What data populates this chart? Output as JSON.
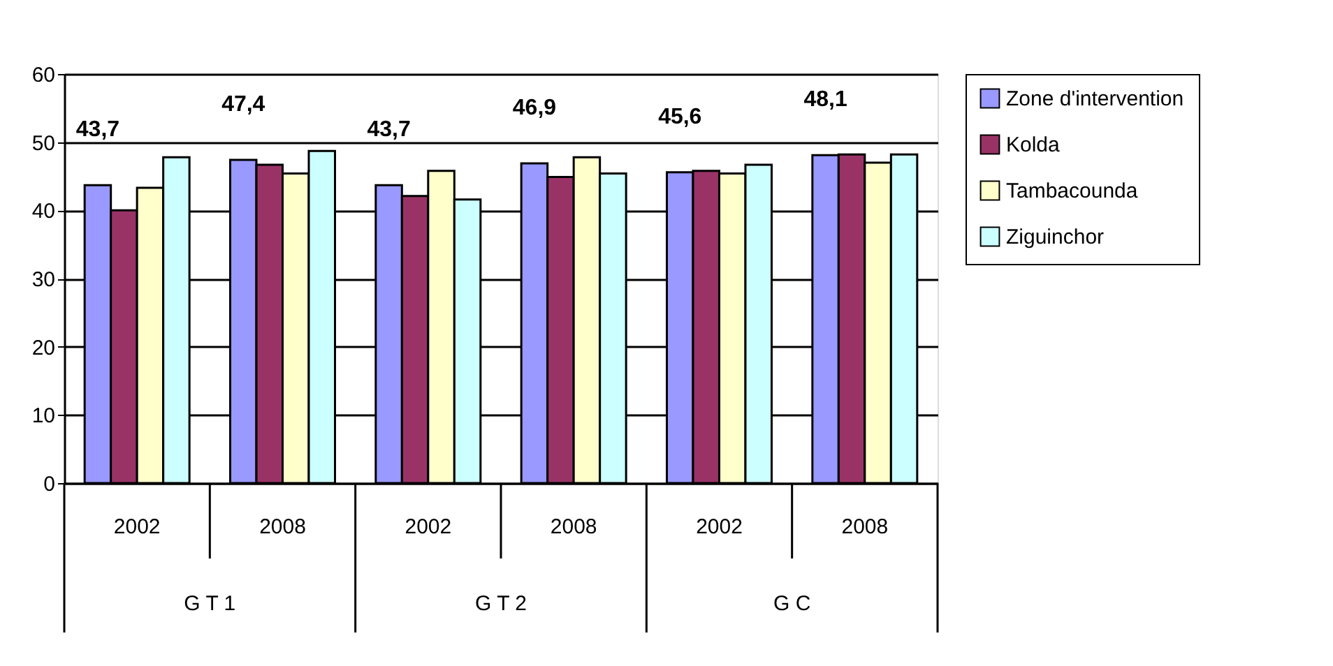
{
  "chart_data": {
    "type": "bar",
    "categories": [
      "2002",
      "2008",
      "2002",
      "2008",
      "2002",
      "2008"
    ],
    "annotations": [
      "G T 1",
      "G T 2",
      "G C"
    ],
    "series": [
      {
        "name": "Zone d'intervention",
        "color": "#9999ff",
        "values": [
          43.7,
          47.4,
          43.7,
          46.9,
          45.6,
          48.1
        ],
        "value_labels": [
          "43,7",
          "47,4",
          "43,7",
          "46,9",
          "45,6",
          "48,1"
        ]
      },
      {
        "name": "Kolda",
        "color": "#993366",
        "values": [
          40.0,
          46.7,
          42.1,
          44.9,
          45.8,
          48.2
        ]
      },
      {
        "name": "Tambacounda",
        "color": "#ffffcc",
        "values": [
          43.3,
          45.4,
          45.8,
          47.8,
          45.4,
          47.0
        ]
      },
      {
        "name": "Ziguinchor",
        "color": "#ccffff",
        "values": [
          47.8,
          48.7,
          41.6,
          45.4,
          46.7,
          48.2
        ]
      }
    ],
    "ylim": [
      0,
      60
    ],
    "yticks": [
      0,
      10,
      20,
      30,
      40,
      50,
      60
    ],
    "grid": "y",
    "legend": "right"
  }
}
